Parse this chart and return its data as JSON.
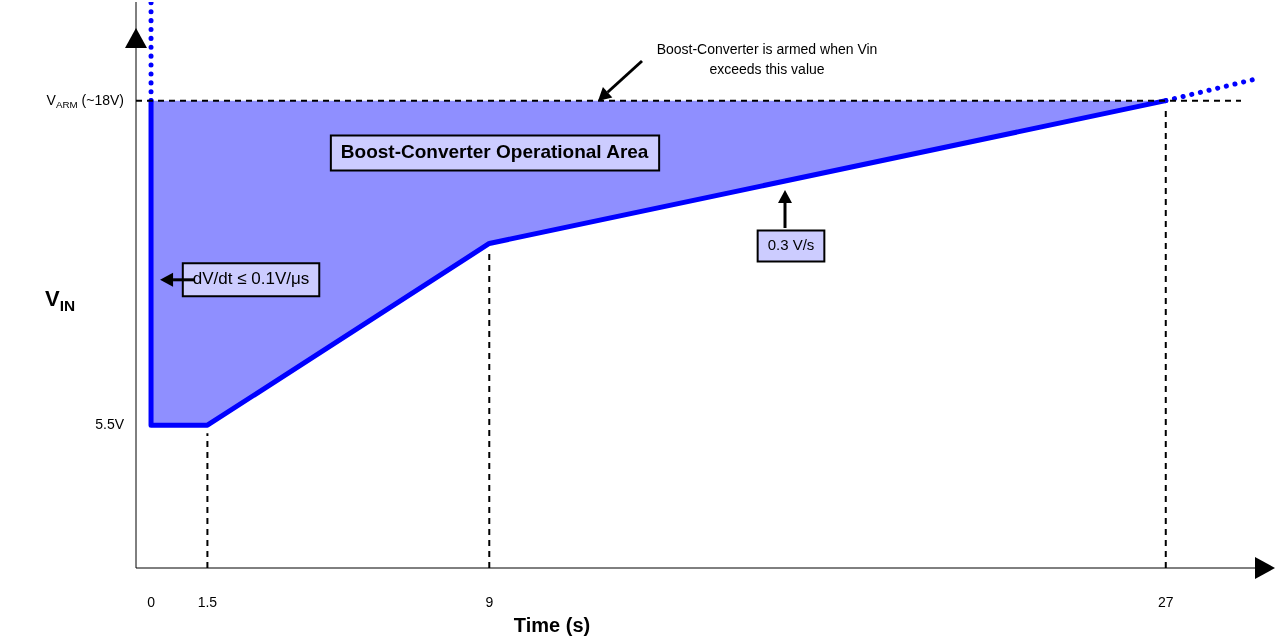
{
  "chart_data": {
    "type": "line",
    "xlabel": "Time (s)",
    "ylabel": "V$_{IN}$",
    "xlim": [
      -0.4,
      29.8
    ],
    "ylim": [
      0,
      21.8
    ],
    "xticks": [
      0,
      1.5,
      9,
      27
    ],
    "yticks": [
      {
        "value": 5.5,
        "label": "5.5V"
      },
      {
        "value": 18,
        "label": "V$_{ARM}$ (~18V)"
      }
    ],
    "grid": false,
    "legend": false,
    "marker": "none",
    "series": [
      {
        "type": "area",
        "color": "#0000ff",
        "x": [
          0,
          0,
          1.5,
          9,
          27
        ],
        "values": [
          18,
          5.5,
          5.5,
          12.5,
          18
        ],
        "line_style": "solid"
      },
      {
        "type": "line",
        "color": "#0000ff",
        "x": [
          0,
          0
        ],
        "values": [
          18,
          21.8
        ],
        "line_style": "dotted"
      },
      {
        "type": "line",
        "color": "#0000ff",
        "x": [
          27,
          29.3
        ],
        "values": [
          18,
          18.8
        ],
        "line_style": "dotted"
      }
    ],
    "ref_lines": [
      {
        "axis": "y",
        "value": 18,
        "line_style": "dashed",
        "color": "#000000"
      },
      {
        "axis": "x",
        "value": 1.5,
        "line_style": "dashed",
        "color": "#000000"
      },
      {
        "axis": "x",
        "value": 9,
        "line_style": "dashed",
        "color": "#000000"
      },
      {
        "axis": "x",
        "value": 27,
        "line_style": "dashed",
        "color": "#000000"
      }
    ],
    "annotations": [
      "Boost-Converter is armed when Vin exceeds this value",
      "Boost-Converter Operational Area",
      {
        "text": "dV/dt ≤ 0.1V/μs",
        "x": 0,
        "y": 11.1
      },
      "0.3 V/s"
    ]
  }
}
